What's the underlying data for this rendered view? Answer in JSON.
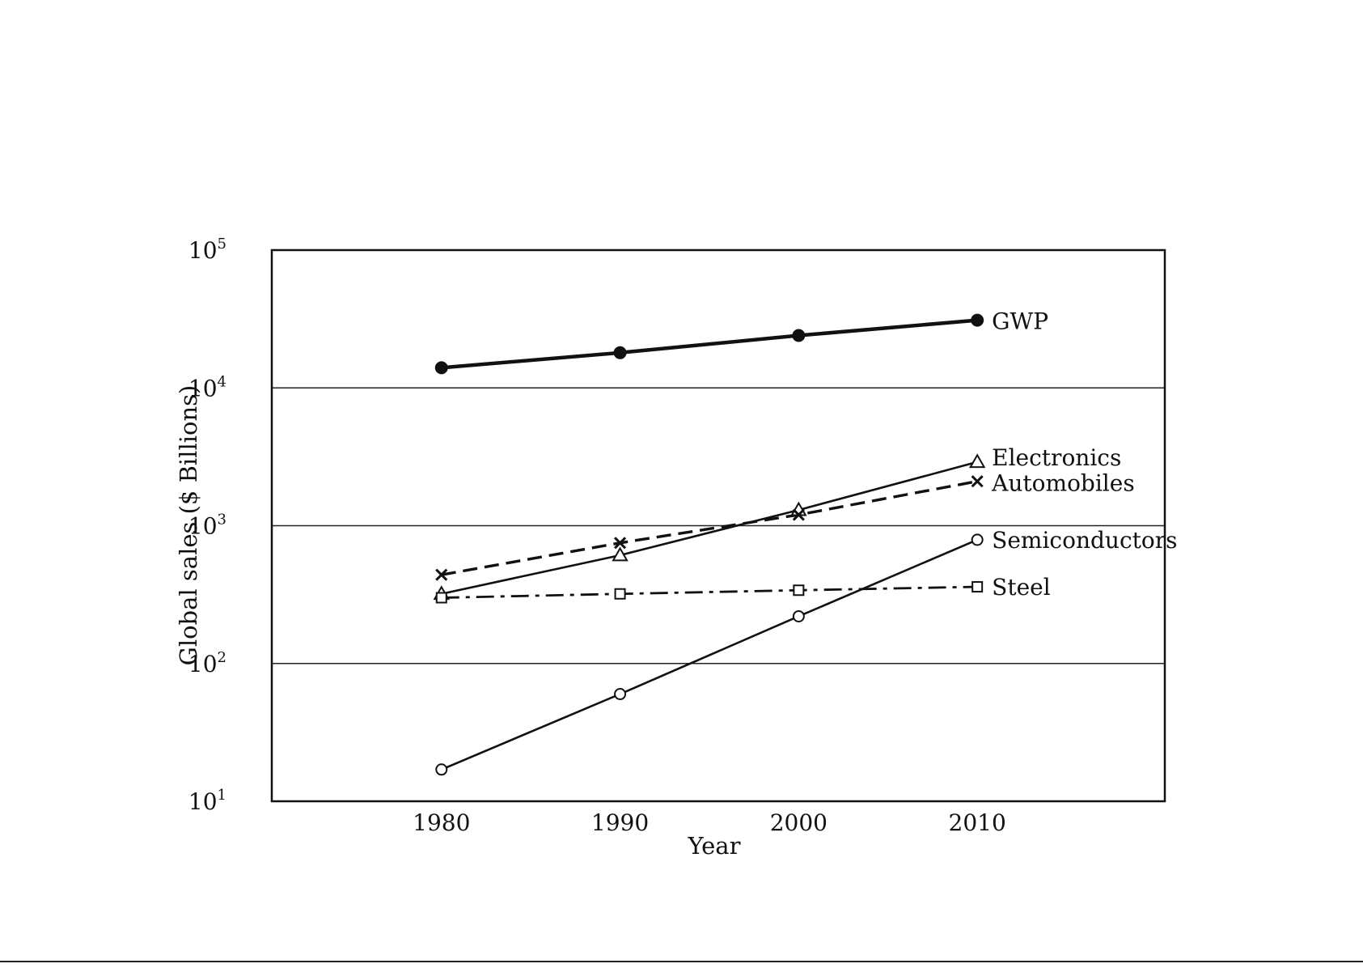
{
  "chart_data": {
    "type": "line",
    "x_axis": {
      "title": "Year",
      "ticks": [
        1980,
        1990,
        2000,
        2010
      ],
      "range": [
        1970.5,
        2020.5
      ]
    },
    "y_axis": {
      "title": "Global sales ($ Billions)",
      "scale": "log",
      "range": [
        10,
        100000
      ],
      "ticks": [
        {
          "value": 10,
          "base": "10",
          "exp": "1"
        },
        {
          "value": 100,
          "base": "10",
          "exp": "2"
        },
        {
          "value": 1000,
          "base": "10",
          "exp": "3"
        },
        {
          "value": 10000,
          "base": "10",
          "exp": "4"
        },
        {
          "value": 100000,
          "base": "10",
          "exp": "5"
        }
      ]
    },
    "grid": "horizontal lines at decades",
    "legend": "labels at line ends (right)",
    "series": [
      {
        "name": "GWP",
        "marker": "filled-circle",
        "line": "solid-thick",
        "color": "#111111",
        "x": [
          1980,
          1990,
          2000,
          2010
        ],
        "y": [
          14000,
          18000,
          24000,
          31000
        ]
      },
      {
        "name": "Electronics",
        "marker": "open-triangle",
        "line": "solid",
        "color": "#111111",
        "x": [
          1980,
          1990,
          2000,
          2010
        ],
        "y": [
          320,
          610,
          1300,
          2900
        ]
      },
      {
        "name": "Automobiles",
        "marker": "x",
        "line": "dashed",
        "color": "#111111",
        "x": [
          1980,
          1990,
          2000,
          2010
        ],
        "y": [
          440,
          750,
          1200,
          2100
        ]
      },
      {
        "name": "Semiconductors",
        "marker": "open-circle",
        "line": "solid",
        "color": "#111111",
        "x": [
          1980,
          1990,
          2000,
          2010
        ],
        "y": [
          17,
          60,
          220,
          790
        ]
      },
      {
        "name": "Steel",
        "marker": "open-square",
        "line": "dash-dot",
        "color": "#111111",
        "x": [
          1980,
          1990,
          2000,
          2010
        ],
        "y": [
          300,
          320,
          340,
          360
        ]
      }
    ]
  }
}
